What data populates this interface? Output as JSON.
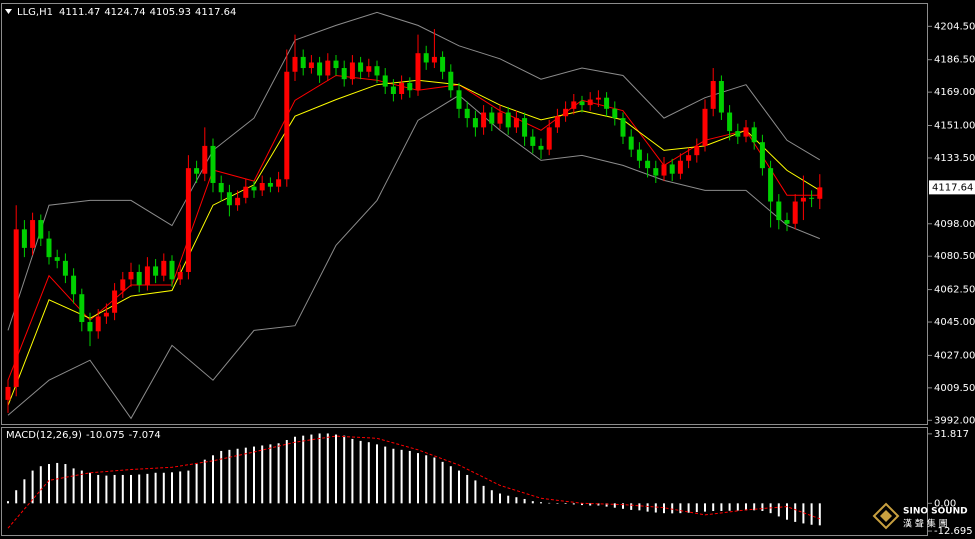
{
  "chart_data": [
    {
      "type": "candlestick",
      "title": "LLG,H1",
      "open": [
        4003,
        4010,
        4095,
        4085,
        4100,
        4090,
        4080,
        4078,
        4070,
        4060,
        4045,
        4040,
        4048,
        4050,
        4062,
        4068,
        4072,
        4065,
        4075,
        4070,
        4078,
        4068,
        4072,
        4128,
        4125,
        4140,
        4120,
        4115,
        4108,
        4112,
        4118,
        4116,
        4120,
        4118,
        4122,
        4180,
        4188,
        4182,
        4185,
        4178,
        4186,
        4182,
        4176,
        4185,
        4180,
        4183,
        4178,
        4172,
        4168,
        4174,
        4170,
        4190,
        4185,
        4188,
        4180,
        4170,
        4160,
        4155,
        4150,
        4158,
        4152,
        4158,
        4150,
        4155,
        4145,
        4140,
        4138,
        4150,
        4156,
        4160,
        4164,
        4162,
        4165,
        4166,
        4160,
        4155,
        4145,
        4138,
        4132,
        4128,
        4124,
        4130,
        4125,
        4132,
        4135,
        4140,
        4160,
        4175,
        4158,
        4148,
        4145,
        4150,
        4142,
        4128,
        4110,
        4100,
        4098,
        4110,
        4112,
        4111.47
      ],
      "high": [
        4014,
        4108,
        4100,
        4104,
        4103,
        4094,
        4084,
        4082,
        4074,
        4063,
        4050,
        4052,
        4055,
        4066,
        4072,
        4077,
        4076,
        4080,
        4079,
        4082,
        4081,
        4076,
        4135,
        4132,
        4150,
        4144,
        4124,
        4119,
        4116,
        4122,
        4121,
        4124,
        4123,
        4126,
        4192,
        4200,
        4192,
        4189,
        4188,
        4190,
        4189,
        4186,
        4189,
        4188,
        4187,
        4186,
        4182,
        4176,
        4178,
        4177,
        4200,
        4194,
        4203,
        4191,
        4184,
        4174,
        4164,
        4159,
        4162,
        4161,
        4162,
        4161,
        4159,
        4158,
        4149,
        4144,
        4154,
        4160,
        4164,
        4168,
        4167,
        4169,
        4170,
        4169,
        4164,
        4158,
        4149,
        4142,
        4136,
        4132,
        4134,
        4133,
        4136,
        4139,
        4144,
        4165,
        4182,
        4178,
        4162,
        4152,
        4154,
        4153,
        4146,
        4132,
        4114,
        4104,
        4114,
        4124,
        4116,
        4124.74
      ],
      "low": [
        3996,
        4005,
        4080,
        4081,
        4086,
        4076,
        4074,
        4066,
        4055,
        4040,
        4032,
        4036,
        4044,
        4046,
        4058,
        4064,
        4061,
        4062,
        4066,
        4067,
        4064,
        4065,
        4068,
        4120,
        4121,
        4115,
        4110,
        4102,
        4105,
        4109,
        4112,
        4113,
        4115,
        4115,
        4118,
        4175,
        4178,
        4179,
        4174,
        4175,
        4178,
        4172,
        4173,
        4176,
        4177,
        4174,
        4168,
        4164,
        4165,
        4166,
        4167,
        4181,
        4182,
        4176,
        4166,
        4155,
        4150,
        4145,
        4146,
        4148,
        4149,
        4146,
        4147,
        4140,
        4136,
        4133,
        4135,
        4147,
        4153,
        4157,
        4158,
        4159,
        4161,
        4156,
        4151,
        4141,
        4134,
        4128,
        4123,
        4120,
        4121,
        4121,
        4122,
        4128,
        4131,
        4137,
        4156,
        4154,
        4143,
        4141,
        4142,
        4138,
        4124,
        4096,
        4095,
        4094,
        4095,
        4100,
        4107,
        4105.93
      ],
      "close": [
        4010,
        4095,
        4085,
        4100,
        4090,
        4080,
        4078,
        4070,
        4060,
        4045,
        4040,
        4048,
        4050,
        4062,
        4068,
        4072,
        4065,
        4075,
        4070,
        4078,
        4068,
        4072,
        4128,
        4125,
        4140,
        4120,
        4115,
        4108,
        4112,
        4118,
        4116,
        4120,
        4118,
        4122,
        4180,
        4188,
        4182,
        4185,
        4178,
        4186,
        4182,
        4176,
        4185,
        4180,
        4183,
        4178,
        4172,
        4168,
        4174,
        4170,
        4190,
        4185,
        4188,
        4180,
        4170,
        4160,
        4155,
        4150,
        4158,
        4152,
        4158,
        4150,
        4155,
        4145,
        4140,
        4138,
        4150,
        4156,
        4160,
        4164,
        4162,
        4165,
        4166,
        4160,
        4155,
        4145,
        4138,
        4132,
        4128,
        4124,
        4130,
        4125,
        4132,
        4135,
        4140,
        4160,
        4175,
        4158,
        4148,
        4145,
        4150,
        4142,
        4128,
        4110,
        4100,
        4098,
        4110,
        4112,
        4111.47,
        4117.64
      ],
      "up_color": "#ff0000",
      "down_color": "#00d000",
      "lines": [
        {
          "color": "#8c8c8c",
          "x": [
            0,
            5,
            10,
            15,
            20,
            25,
            30,
            35,
            40,
            45,
            50,
            55,
            60,
            65,
            70,
            75,
            80,
            85,
            90,
            95,
            99
          ],
          "values": [
            4040.5,
            4108,
            4110.6,
            4110.6,
            4097,
            4137.6,
            4155,
            4197,
            4205,
            4212,
            4205,
            4194,
            4187,
            4176,
            4182,
            4178,
            4155,
            4166,
            4173,
            4143,
            4132.5
          ]
        },
        {
          "color": "#8c8c8c",
          "x": [
            0,
            5,
            10,
            15,
            20,
            25,
            30,
            35,
            40,
            45,
            50,
            55,
            60,
            65,
            70,
            75,
            80,
            85,
            90,
            95,
            99
          ],
          "values": [
            3994.7,
            4013.6,
            4024.4,
            3993,
            4032.4,
            4013.6,
            4040.5,
            4043,
            4086.4,
            4110.6,
            4153.8,
            4167.3,
            4148.4,
            4132.2,
            4134.9,
            4129.5,
            4121.4,
            4116,
            4116,
            4097.2,
            4090
          ]
        },
        {
          "color": "#ff0000",
          "x": [
            0,
            5,
            10,
            15,
            20,
            25,
            30,
            35,
            40,
            45,
            50,
            55,
            60,
            65,
            70,
            75,
            80,
            85,
            90,
            95,
            99
          ],
          "values": [
            4013.6,
            4070,
            4046,
            4065,
            4065,
            4127,
            4121,
            4164.6,
            4178,
            4175.4,
            4170,
            4173,
            4159,
            4148.4,
            4164.6,
            4159,
            4129.5,
            4143,
            4148.4,
            4113.4,
            4113.4
          ]
        },
        {
          "color": "#ffff00",
          "x": [
            0,
            5,
            10,
            15,
            20,
            25,
            30,
            35,
            40,
            45,
            50,
            55,
            60,
            65,
            70,
            75,
            80,
            85,
            90,
            95,
            99
          ],
          "values": [
            4000,
            4057,
            4047,
            4059,
            4062,
            4108,
            4119,
            4156,
            4165,
            4173,
            4175.4,
            4173,
            4162,
            4154,
            4159,
            4154,
            4137.6,
            4140,
            4148.4,
            4126.8,
            4116
          ]
        }
      ],
      "ylim": [
        3990,
        4216
      ],
      "yticks": [
        {
          "value": 4204.5,
          "label": "4204.50"
        },
        {
          "value": 4186.5,
          "label": "4186.50"
        },
        {
          "value": 4169,
          "label": "4169.00"
        },
        {
          "value": 4151,
          "label": "4151.00"
        },
        {
          "value": 4133.5,
          "label": "4133.50"
        },
        {
          "value": 4098,
          "label": "4098.00"
        },
        {
          "value": 4080.5,
          "label": "4080.50"
        },
        {
          "value": 4062.5,
          "label": "4062.50"
        },
        {
          "value": 4045,
          "label": "4045.00"
        },
        {
          "value": 4027,
          "label": "4027.00"
        },
        {
          "value": 4009.5,
          "label": "4009.50"
        },
        {
          "value": 3992,
          "label": "3992.00"
        }
      ]
    },
    {
      "type": "macd",
      "title": "MACD(12,26,9)",
      "values": [
        1,
        6,
        11,
        15,
        17,
        18,
        18.5,
        18,
        16,
        15,
        14,
        13,
        12.7,
        13,
        13,
        13,
        13.2,
        13.5,
        14,
        14,
        14.2,
        14.6,
        15,
        18,
        20,
        22,
        24,
        24.5,
        25,
        25.5,
        26,
        26.5,
        27,
        27.5,
        29,
        30.5,
        31,
        31.5,
        32,
        32,
        31.5,
        31,
        29.5,
        28.6,
        28,
        27,
        26,
        25,
        24.5,
        24,
        23,
        22,
        21,
        19,
        17,
        15,
        13,
        10.5,
        8,
        6,
        4.5,
        3.5,
        2.8,
        2,
        1,
        0.5,
        0.2,
        0,
        -0.3,
        -0.5,
        -0.8,
        -1,
        -1,
        -1.5,
        -2,
        -2.5,
        -3,
        -3.2,
        -3.8,
        -4.2,
        -4.5,
        -4.6,
        -4.5,
        -4.3,
        -4,
        -3.8,
        -3.5,
        -3.5,
        -3.4,
        -3.3,
        -3.2,
        -3.2,
        -3.5,
        -4.5,
        -6,
        -7.5,
        -8.5,
        -9.2,
        -9.8,
        -10.075
      ],
      "color": "#ffffff",
      "signal": {
        "color": "#ff0000",
        "x": [
          0,
          5,
          10,
          15,
          20,
          25,
          30,
          35,
          40,
          45,
          50,
          55,
          60,
          65,
          70,
          75,
          80,
          85,
          90,
          95,
          99
        ],
        "values": [
          -11.4,
          10.5,
          14,
          15.5,
          16.5,
          19.5,
          23.5,
          28,
          30.8,
          29.8,
          24.5,
          17.5,
          8.2,
          2.3,
          0,
          -0.6,
          -2,
          -5.3,
          -3,
          -1.5,
          -7.074
        ]
      },
      "ylim": [
        -14.5,
        34.5
      ],
      "yticks": [
        31.817,
        {
          "value": 0,
          "label": "0.00"
        },
        -12.695
      ]
    }
  ],
  "watermark": {
    "brand": "SINO SOUND",
    "chinese": "漢 聲 集 團"
  }
}
